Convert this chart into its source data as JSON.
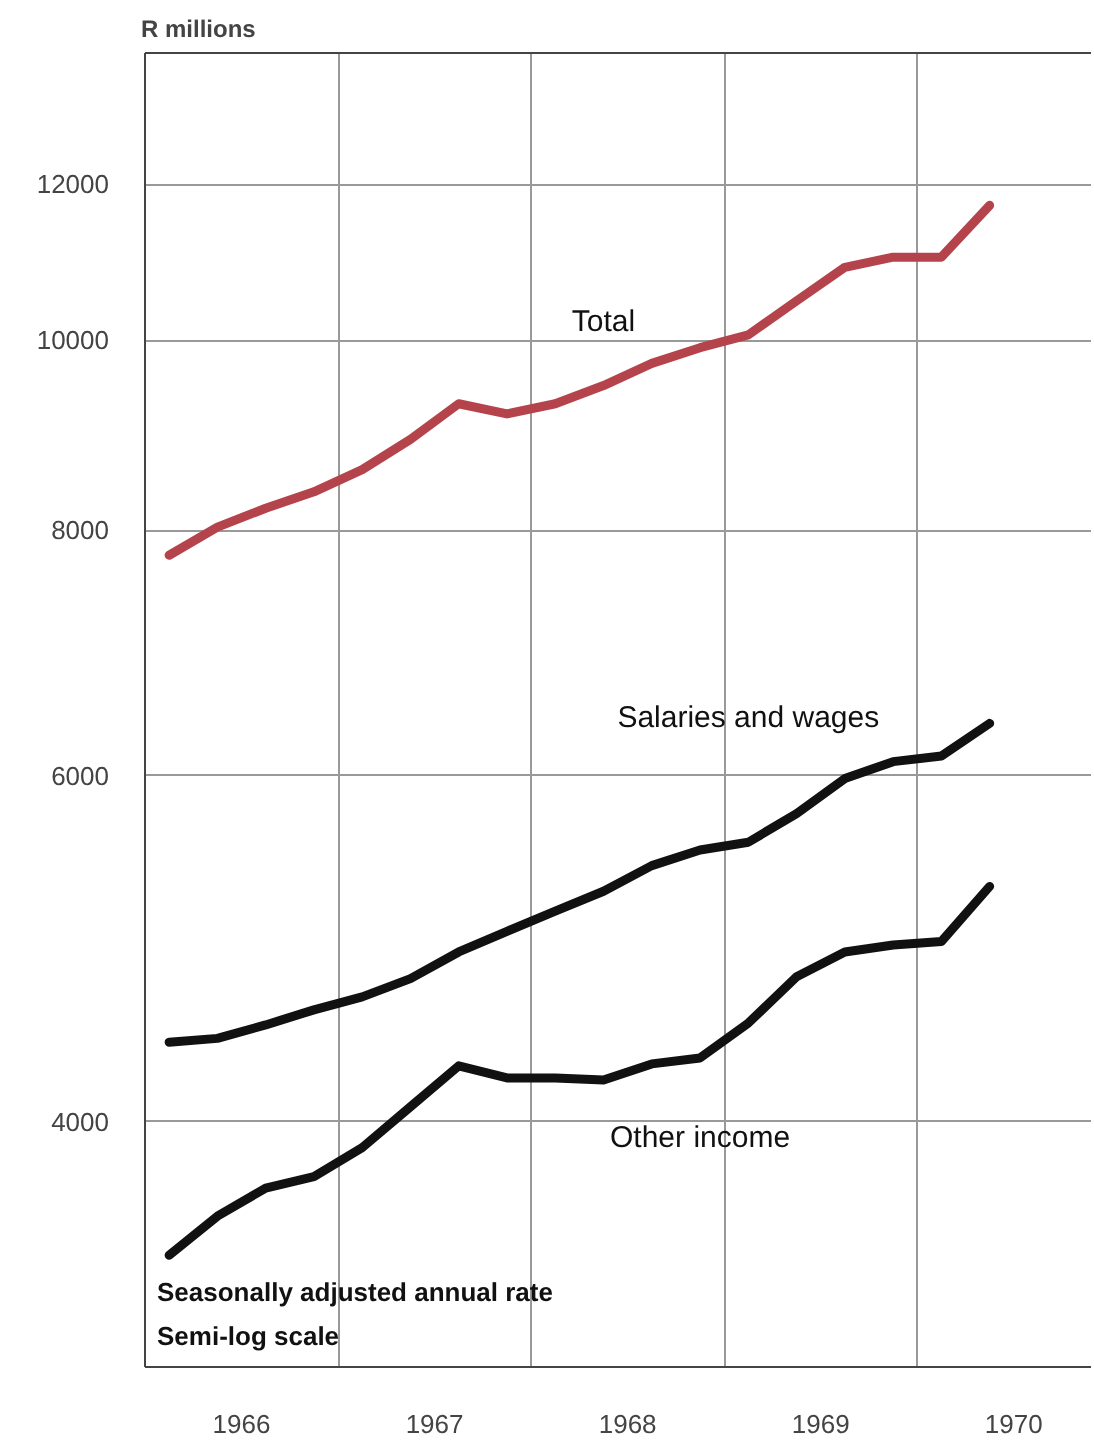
{
  "chart_data": {
    "type": "line",
    "ylabel": "R millions",
    "x": [
      1966.125,
      1966.375,
      1966.625,
      1966.875,
      1967.125,
      1967.375,
      1967.625,
      1967.875,
      1968.125,
      1968.375,
      1968.625,
      1968.875,
      1969.125,
      1969.375,
      1969.625,
      1969.875,
      1970.125,
      1970.375
    ],
    "series": [
      {
        "name": "Total",
        "color": "#b5434c",
        "values": [
          7770,
          8030,
          8210,
          8370,
          8590,
          8900,
          9280,
          9170,
          9280,
          9480,
          9730,
          9910,
          10060,
          10470,
          10890,
          11020,
          11020,
          11710
        ]
      },
      {
        "name": "Salaries and wages",
        "color": "#111111",
        "values": [
          4390,
          4410,
          4480,
          4560,
          4630,
          4730,
          4880,
          5000,
          5120,
          5240,
          5400,
          5500,
          5550,
          5740,
          5980,
          6100,
          6140,
          6380
        ]
      },
      {
        "name": "Other income",
        "color": "#111111",
        "values": [
          3420,
          3580,
          3700,
          3750,
          3880,
          4070,
          4270,
          4210,
          4210,
          4200,
          4280,
          4310,
          4490,
          4740,
          4880,
          4920,
          4940,
          5270
        ]
      }
    ],
    "log": "y",
    "xlim": [
      1966,
      1970.9
    ],
    "xticks": [
      {
        "value": 1966,
        "label": null
      },
      {
        "value": 1966.5,
        "label": "1966"
      },
      {
        "value": 1967,
        "label": null
      },
      {
        "value": 1967.5,
        "label": "1967"
      },
      {
        "value": 1968,
        "label": null
      },
      {
        "value": 1968.5,
        "label": "1968"
      },
      {
        "value": 1969,
        "label": null
      },
      {
        "value": 1969.5,
        "label": "1969"
      },
      {
        "value": 1970,
        "label": null
      },
      {
        "value": 1970.5,
        "label": "1970"
      }
    ],
    "ylim": [
      3000,
      14000
    ],
    "yticks": [
      4000,
      6000,
      8000,
      10000,
      12000
    ],
    "grid": true,
    "line_style": "solid",
    "marker": "none",
    "legend": false,
    "annotations": [
      "Seasonally adjusted annual rate",
      "Semi-log scale"
    ]
  }
}
